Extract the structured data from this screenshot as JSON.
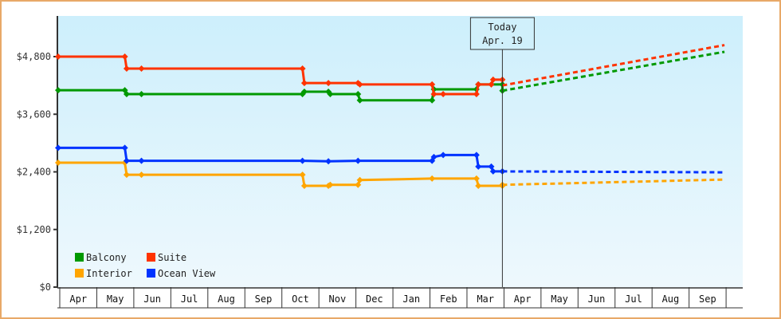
{
  "chart_data": {
    "type": "line",
    "title": "",
    "xlabel": "",
    "ylabel": "",
    "ylim": [
      0,
      5700
    ],
    "y_ticks": [
      {
        "value": 0,
        "label": "$0"
      },
      {
        "value": 1200,
        "label": "$1,200"
      },
      {
        "value": 2400,
        "label": "$2,400"
      },
      {
        "value": 3600,
        "label": "$3,600"
      },
      {
        "value": 4800,
        "label": "$4,800"
      }
    ],
    "x_ticks": [
      "Apr",
      "May",
      "Jun",
      "Jul",
      "Aug",
      "Sep",
      "Oct",
      "Nov",
      "Dec",
      "Jan",
      "Feb",
      "Mar",
      "Apr",
      "May",
      "Jun",
      "Jul",
      "Aug",
      "Sep"
    ],
    "grid": false,
    "legend_position": "bottom-left inside",
    "annotation": {
      "line1": "Today",
      "line2": "Apr. 19",
      "x_month_index": 12.0
    },
    "series": [
      {
        "name": "Balcony",
        "color": "#009900",
        "points": [
          [
            0,
            4100
          ],
          [
            1.8,
            4100
          ],
          [
            1.85,
            4020
          ],
          [
            2.25,
            4020
          ],
          [
            6.6,
            4020
          ],
          [
            6.65,
            4070
          ],
          [
            7.3,
            4070
          ],
          [
            7.35,
            4020
          ],
          [
            8.1,
            4020
          ],
          [
            8.15,
            3890
          ],
          [
            10.1,
            3890
          ],
          [
            10.15,
            4120
          ],
          [
            11.3,
            4120
          ],
          [
            11.35,
            4220
          ],
          [
            12.0,
            4220
          ],
          [
            12.0,
            4090
          ]
        ],
        "forecast": [
          [
            12.0,
            4090
          ],
          [
            18.0,
            4900
          ]
        ]
      },
      {
        "name": "Suite",
        "color": "#ff3300",
        "points": [
          [
            0,
            4800
          ],
          [
            1.8,
            4800
          ],
          [
            1.85,
            4550
          ],
          [
            2.25,
            4550
          ],
          [
            6.6,
            4550
          ],
          [
            6.65,
            4250
          ],
          [
            7.3,
            4250
          ],
          [
            8.1,
            4250
          ],
          [
            8.15,
            4220
          ],
          [
            10.1,
            4220
          ],
          [
            10.15,
            4020
          ],
          [
            10.4,
            4020
          ],
          [
            11.3,
            4020
          ],
          [
            11.35,
            4220
          ],
          [
            11.7,
            4220
          ],
          [
            11.75,
            4320
          ],
          [
            12.0,
            4320
          ]
        ],
        "forecast": [
          [
            12.0,
            4200
          ],
          [
            18.0,
            5040
          ]
        ]
      },
      {
        "name": "Interior",
        "color": "#ffa500",
        "points": [
          [
            0,
            2590
          ],
          [
            1.8,
            2590
          ],
          [
            1.85,
            2340
          ],
          [
            2.25,
            2340
          ],
          [
            6.6,
            2340
          ],
          [
            6.65,
            2110
          ],
          [
            7.3,
            2110
          ],
          [
            7.35,
            2130
          ],
          [
            8.1,
            2130
          ],
          [
            8.15,
            2230
          ],
          [
            10.1,
            2260
          ],
          [
            11.3,
            2260
          ],
          [
            11.35,
            2110
          ],
          [
            12.0,
            2110
          ],
          [
            12.0,
            2130
          ]
        ],
        "forecast": [
          [
            12.0,
            2130
          ],
          [
            18.0,
            2240
          ]
        ]
      },
      {
        "name": "Ocean View",
        "color": "#0033ff",
        "points": [
          [
            0,
            2900
          ],
          [
            1.8,
            2900
          ],
          [
            1.85,
            2630
          ],
          [
            2.25,
            2630
          ],
          [
            6.6,
            2630
          ],
          [
            7.3,
            2620
          ],
          [
            8.1,
            2630
          ],
          [
            10.1,
            2630
          ],
          [
            10.15,
            2710
          ],
          [
            10.4,
            2750
          ],
          [
            11.3,
            2750
          ],
          [
            11.35,
            2510
          ],
          [
            11.7,
            2510
          ],
          [
            11.75,
            2410
          ],
          [
            12.0,
            2410
          ]
        ],
        "forecast": [
          [
            12.0,
            2410
          ],
          [
            18.0,
            2390
          ]
        ]
      }
    ]
  },
  "legend": [
    {
      "label": "Balcony",
      "color": "#009900"
    },
    {
      "label": "Suite",
      "color": "#ff3300"
    },
    {
      "label": "Interior",
      "color": "#ffa500"
    },
    {
      "label": "Ocean View",
      "color": "#0033ff"
    }
  ]
}
